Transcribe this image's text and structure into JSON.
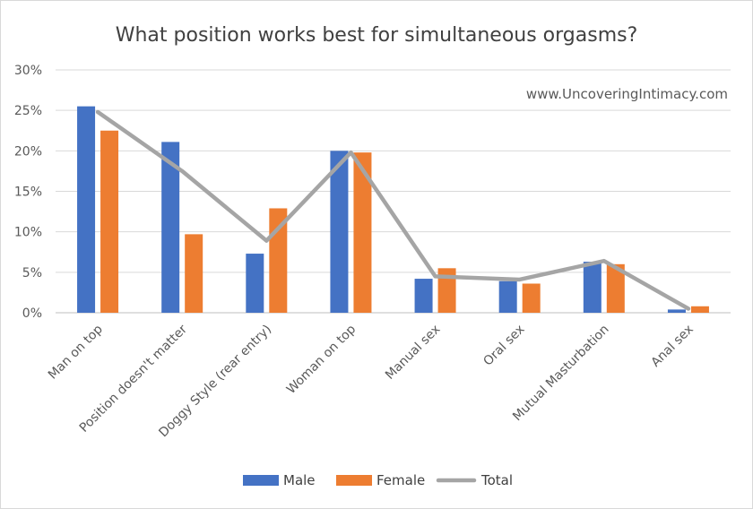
{
  "chart_data": {
    "type": "bar",
    "title": "What position works best for simultaneous orgasms?",
    "watermark": "www.UncoveringIntimacy.com",
    "categories": [
      "Man on top",
      "Position doesn't matter",
      "Doggy Style (rear entry)",
      "Woman on top",
      "Manual sex",
      "Oral sex",
      "Mutual Masturbation",
      "Anal sex"
    ],
    "series": [
      {
        "name": "Male",
        "type": "bar",
        "color": "#4472c4",
        "values": [
          25.5,
          21.1,
          7.3,
          20.0,
          4.2,
          3.9,
          6.3,
          0.4
        ]
      },
      {
        "name": "Female",
        "type": "bar",
        "color": "#ed7d31",
        "values": [
          22.5,
          9.7,
          12.9,
          19.8,
          5.5,
          3.6,
          6.0,
          0.8
        ]
      },
      {
        "name": "Total",
        "type": "line",
        "color": "#a5a5a5",
        "values": [
          24.8,
          17.5,
          8.9,
          19.8,
          4.5,
          4.1,
          6.4,
          0.5
        ]
      }
    ],
    "yticks": [
      "0%",
      "5%",
      "10%",
      "15%",
      "20%",
      "25%",
      "30%"
    ],
    "ylim": [
      0,
      30
    ],
    "grid": true,
    "legend": "bottom"
  }
}
